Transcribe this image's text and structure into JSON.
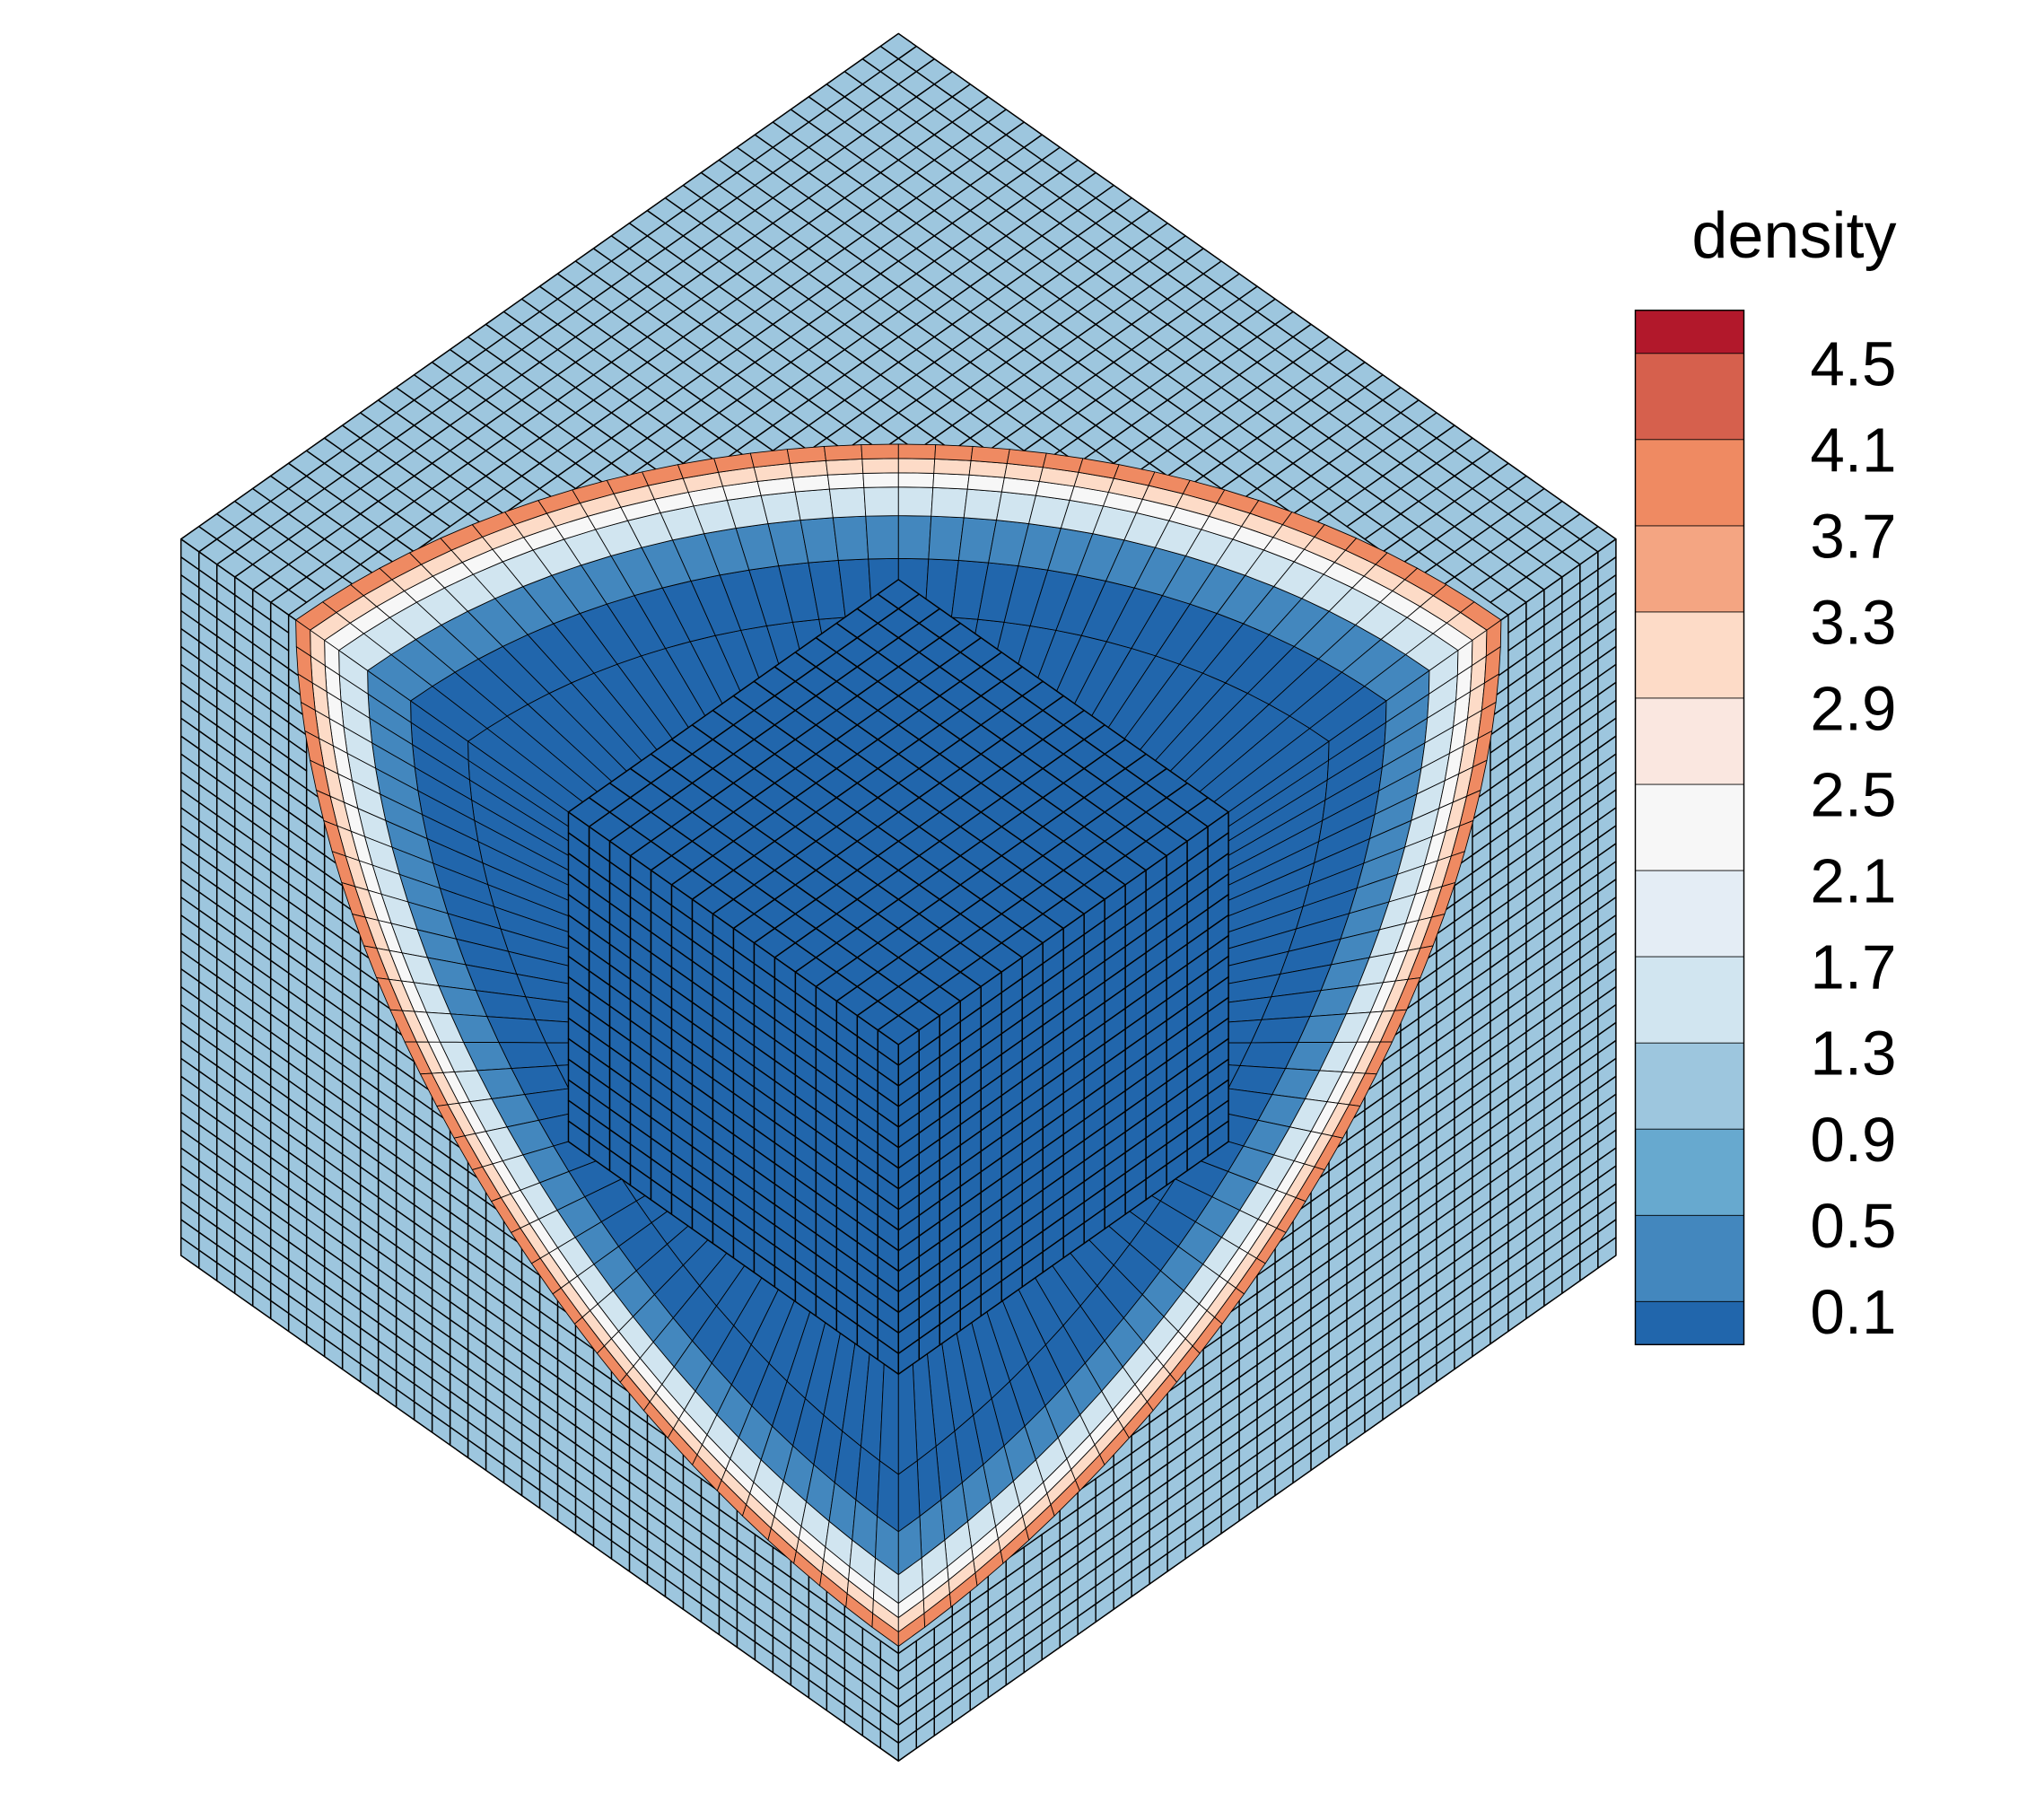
{
  "colorbar": {
    "title": "density",
    "ticks": [
      0.1,
      0.5,
      0.9,
      1.3,
      1.7,
      2.1,
      2.5,
      2.9,
      3.3,
      3.7,
      4.1,
      4.5
    ],
    "lim": [
      -0.1,
      4.7
    ],
    "colors": [
      "#2166ac",
      "#4387be",
      "#67a9cf",
      "#9dc6de",
      "#d1e5f0",
      "#e4edf5",
      "#f7f7f7",
      "#fae7e0",
      "#fddbc7",
      "#f4a582",
      "#ef8a62",
      "#d6604d",
      "#b2182b"
    ]
  }
}
